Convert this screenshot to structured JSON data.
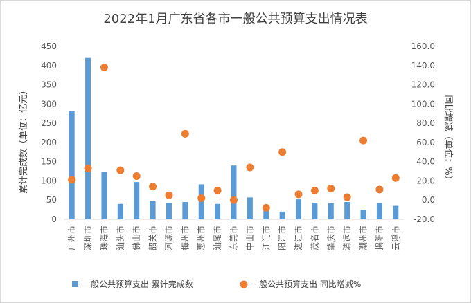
{
  "chart_data": {
    "type": "bar",
    "title": "2022年1月广东省各市一般公共预算支出情况表",
    "categories": [
      "广州市",
      "深圳市",
      "珠海市",
      "汕头市",
      "佛山市",
      "韶关市",
      "河源市",
      "梅州市",
      "惠州市",
      "汕尾市",
      "东莞市",
      "中山市",
      "江门市",
      "阳江市",
      "湛江市",
      "茂名市",
      "肇庆市",
      "清远市",
      "潮州市",
      "揭阳市",
      "云浮市"
    ],
    "series": [
      {
        "name": "一般公共预算支出 累计完成数",
        "type": "bar",
        "axis": "left",
        "color": "#5b9bd5",
        "values": [
          281,
          420,
          124,
          40,
          97,
          47,
          43,
          45,
          91,
          40,
          140,
          57,
          23,
          20,
          52,
          43,
          42,
          45,
          25,
          42,
          35
        ]
      },
      {
        "name": "一般公共预算支出 同比增减%",
        "type": "scatter",
        "axis": "right",
        "color": "#ed7d31",
        "values": [
          21.0,
          33.0,
          138.0,
          31.0,
          25.0,
          14.0,
          5.0,
          69.0,
          2.0,
          10.0,
          0.0,
          34.0,
          -8.0,
          50.0,
          6.0,
          10.0,
          12.0,
          3.0,
          62.0,
          11.0,
          23.0
        ]
      }
    ],
    "ylabel": "累计完成数（单位：亿元）",
    "y2label": "同比增减（单位：%）",
    "ylim": [
      0,
      450
    ],
    "y2lim": [
      -20,
      160
    ],
    "yticks": [
      "0",
      "50",
      "100",
      "150",
      "200",
      "250",
      "300",
      "350",
      "400",
      "450"
    ],
    "y2ticks": [
      "-20.0",
      "0.0",
      "20.0",
      "40.0",
      "60.0",
      "80.0",
      "100.0",
      "120.0",
      "140.0",
      "160.0"
    ],
    "grid": false,
    "legend_position": "bottom"
  }
}
